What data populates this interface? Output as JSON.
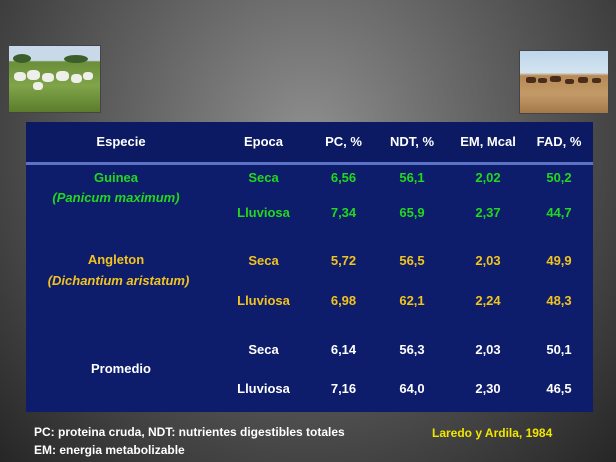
{
  "header": [
    "Especie",
    "Epoca",
    "PC, %",
    "NDT, %",
    "EM, Mcal",
    "FAD, %"
  ],
  "groups": [
    {
      "name": "Guinea",
      "scientific": "(Panicum maximum)",
      "color": "#22d81e",
      "rows": [
        [
          "Seca",
          "6,56",
          "56,1",
          "2,02",
          "50,2"
        ],
        [
          "Lluviosa",
          "7,34",
          "65,9",
          "2,37",
          "44,7"
        ]
      ]
    },
    {
      "name": "Angleton",
      "scientific": "(Dichantium aristatum)",
      "color": "#f2c31f",
      "rows": [
        [
          "Seca",
          "5,72",
          "56,5",
          "2,03",
          "49,9"
        ],
        [
          "Lluviosa",
          "6,98",
          "62,1",
          "2,24",
          "48,3"
        ]
      ]
    },
    {
      "name": "Promedio",
      "color": "#ffffff",
      "rows": [
        [
          "Seca",
          "6,14",
          "56,3",
          "2,03",
          "50,1"
        ],
        [
          "Lluviosa",
          "7,16",
          "64,0",
          "2,30",
          "46,5"
        ]
      ]
    }
  ],
  "footer": {
    "line1": "PC: proteina cruda, NDT: nutrientes digestibles totales",
    "line2": "EM: energia metabolizable",
    "source": "Laredo y Ardila, 1984"
  },
  "colors": {
    "panel": "#0d1d6b",
    "source_text": "#f2e600"
  },
  "images": [
    "sheep-pasture-photo",
    "cattle-field-photo"
  ]
}
